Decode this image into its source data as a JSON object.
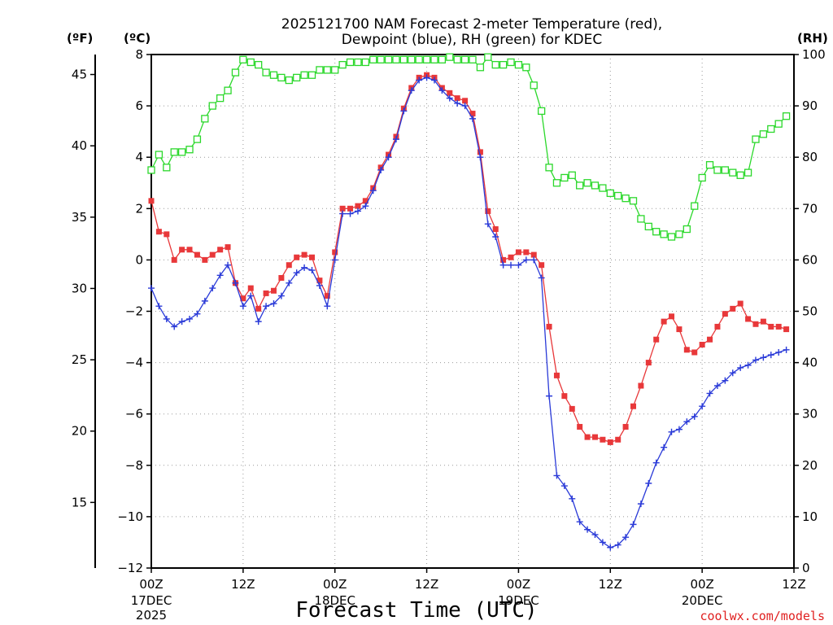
{
  "title_line1": "2025121700 NAM Forecast 2-meter Temperature (red),",
  "title_line2": "Dewpoint (blue), RH (green) for KDEC",
  "unit_f": "(ºF)",
  "unit_c": "(ºC)",
  "unit_rh": "(RH)",
  "xlabel": "Forecast Time (UTC)",
  "credit": "coolwx.com/models",
  "colors": {
    "temp": "#e8383a",
    "dewpoint": "#2a3ad8",
    "rh": "#2bd82b",
    "axis": "#000000",
    "credit": "#e02020"
  },
  "chart_data": {
    "type": "line",
    "x_unit": "forecast hour",
    "x_range": [
      0,
      84
    ],
    "x_ticks": [
      {
        "hour": 0,
        "label": "00Z",
        "sub1": "17DEC",
        "sub2": "2025"
      },
      {
        "hour": 12,
        "label": "12Z",
        "sub1": "",
        "sub2": ""
      },
      {
        "hour": 24,
        "label": "00Z",
        "sub1": "18DEC",
        "sub2": ""
      },
      {
        "hour": 36,
        "label": "12Z",
        "sub1": "",
        "sub2": ""
      },
      {
        "hour": 48,
        "label": "00Z",
        "sub1": "19DEC",
        "sub2": ""
      },
      {
        "hour": 60,
        "label": "12Z",
        "sub1": "",
        "sub2": ""
      },
      {
        "hour": 72,
        "label": "00Z",
        "sub1": "20DEC",
        "sub2": ""
      },
      {
        "hour": 84,
        "label": "12Z",
        "sub1": "",
        "sub2": ""
      }
    ],
    "y_left_c": {
      "label": "(ºC)",
      "range": [
        -12,
        8
      ],
      "ticks": [
        8,
        6,
        4,
        2,
        0,
        -2,
        -4,
        -6,
        -8,
        -10,
        -12
      ]
    },
    "y_left_f": {
      "label": "(ºF)",
      "ticks": [
        45,
        40,
        35,
        30,
        25,
        20,
        15
      ]
    },
    "y_right_rh": {
      "label": "(RH)",
      "range": [
        0,
        100
      ],
      "ticks": [
        100,
        90,
        80,
        70,
        60,
        50,
        40,
        30,
        20,
        10,
        0
      ]
    },
    "hours": [
      0,
      1,
      2,
      3,
      4,
      5,
      6,
      7,
      8,
      9,
      10,
      11,
      12,
      13,
      14,
      15,
      16,
      17,
      18,
      19,
      20,
      21,
      22,
      23,
      24,
      25,
      26,
      27,
      28,
      29,
      30,
      31,
      32,
      33,
      34,
      35,
      36,
      37,
      38,
      39,
      40,
      41,
      42,
      43,
      44,
      45,
      46,
      47,
      48,
      49,
      50,
      51,
      52,
      53,
      54,
      55,
      56,
      57,
      58,
      59,
      60,
      61,
      62,
      63,
      64,
      65,
      66,
      67,
      68,
      69,
      70,
      71,
      72,
      73,
      74,
      75,
      76,
      77,
      78,
      79,
      80,
      81,
      82,
      83,
      84
    ],
    "series": [
      {
        "name": "Temperature (red)",
        "axis": "C",
        "marker": "filled-square",
        "values": [
          2.3,
          1.1,
          1.0,
          0.0,
          0.4,
          0.4,
          0.2,
          0.0,
          0.2,
          0.4,
          0.5,
          -0.9,
          -1.5,
          -1.1,
          -1.9,
          -1.3,
          -1.2,
          -0.7,
          -0.2,
          0.1,
          0.2,
          0.1,
          -0.8,
          -1.4,
          0.3,
          2.0,
          2.0,
          2.1,
          2.3,
          2.8,
          3.6,
          4.1,
          4.8,
          5.9,
          6.7,
          7.1,
          7.2,
          7.1,
          6.7,
          6.5,
          6.3,
          6.2,
          5.7,
          4.2,
          1.9,
          1.2,
          0.0,
          0.1,
          0.3,
          0.3,
          0.2,
          -0.2,
          -2.6,
          -4.5,
          -5.3,
          -5.8,
          -6.5,
          -6.9,
          -6.9,
          -7.0,
          -7.1,
          -7.0,
          -6.5,
          -5.7,
          -4.9,
          -4.0,
          -3.1,
          -2.4,
          -2.2,
          -2.7,
          -3.5,
          -3.6,
          -3.3,
          -3.1,
          -2.6,
          -2.1,
          -1.9,
          -1.7,
          -2.3,
          -2.5,
          -2.4,
          -2.6,
          -2.6,
          -2.7
        ]
      },
      {
        "name": "Dewpoint (blue)",
        "axis": "C",
        "marker": "plus",
        "values": [
          -1.1,
          -1.8,
          -2.3,
          -2.6,
          -2.4,
          -2.3,
          -2.1,
          -1.6,
          -1.1,
          -0.6,
          -0.2,
          -0.9,
          -1.8,
          -1.4,
          -2.4,
          -1.8,
          -1.7,
          -1.4,
          -0.9,
          -0.5,
          -0.3,
          -0.4,
          -1.0,
          -1.8,
          0.0,
          1.8,
          1.8,
          1.9,
          2.1,
          2.7,
          3.5,
          4.0,
          4.7,
          5.8,
          6.6,
          7.0,
          7.1,
          7.0,
          6.6,
          6.3,
          6.1,
          6.0,
          5.5,
          4.0,
          1.4,
          0.9,
          -0.2,
          -0.2,
          -0.2,
          0.0,
          0.0,
          -0.7,
          -5.3,
          -8.4,
          -8.8,
          -9.3,
          -10.2,
          -10.5,
          -10.7,
          -11.0,
          -11.2,
          -11.1,
          -10.8,
          -10.3,
          -9.5,
          -8.7,
          -7.9,
          -7.3,
          -6.7,
          -6.6,
          -6.3,
          -6.1,
          -5.7,
          -5.2,
          -4.9,
          -4.7,
          -4.4,
          -4.2,
          -4.1,
          -3.9,
          -3.8,
          -3.7,
          -3.6,
          -3.5
        ]
      },
      {
        "name": "RH (green)",
        "axis": "RH",
        "marker": "open-square",
        "values": [
          77.5,
          80.5,
          78.0,
          81.0,
          81.0,
          81.5,
          83.5,
          87.5,
          90.0,
          91.5,
          93.0,
          96.5,
          99.0,
          98.5,
          98.0,
          96.5,
          96.0,
          95.5,
          95.0,
          95.5,
          96.0,
          96.0,
          97.0,
          97.0,
          97.0,
          98.0,
          98.5,
          98.5,
          98.5,
          99.0,
          99.0,
          99.0,
          99.0,
          99.0,
          99.0,
          99.0,
          99.0,
          99.0,
          99.0,
          99.5,
          99.0,
          99.0,
          99.0,
          97.5,
          99.5,
          98.0,
          98.0,
          98.5,
          98.0,
          97.5,
          94.0,
          89.0,
          78.0,
          75.0,
          76.0,
          76.5,
          74.5,
          75.0,
          74.5,
          74.0,
          73.0,
          72.5,
          72.0,
          71.5,
          68.0,
          66.5,
          65.5,
          65.0,
          64.5,
          65.0,
          66.0,
          70.5,
          76.0,
          78.5,
          77.5,
          77.5,
          77.0,
          76.5,
          77.0,
          83.5,
          84.5,
          85.5,
          86.5,
          88.0
        ]
      }
    ]
  }
}
